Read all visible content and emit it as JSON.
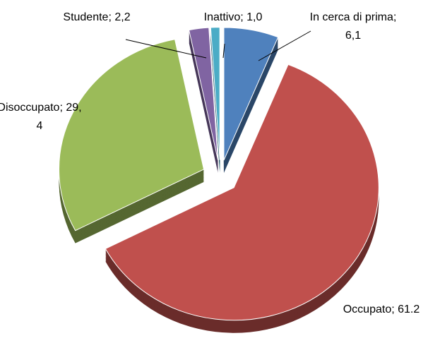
{
  "chart_data": {
    "type": "pie",
    "categories": [
      "In cerca di prima",
      "Occupato",
      "Disoccupato",
      "Studente",
      "Inattivo"
    ],
    "values": [
      6.1,
      61.2,
      29.4,
      2.2,
      1.0
    ],
    "value_labels": [
      "6,1",
      "61.2",
      "29,4",
      "2,2",
      "1,0"
    ],
    "label_separator": ";",
    "colors": [
      "#4f81bd",
      "#c0504d",
      "#9bbb59",
      "#8064a2",
      "#4bacc6"
    ]
  }
}
